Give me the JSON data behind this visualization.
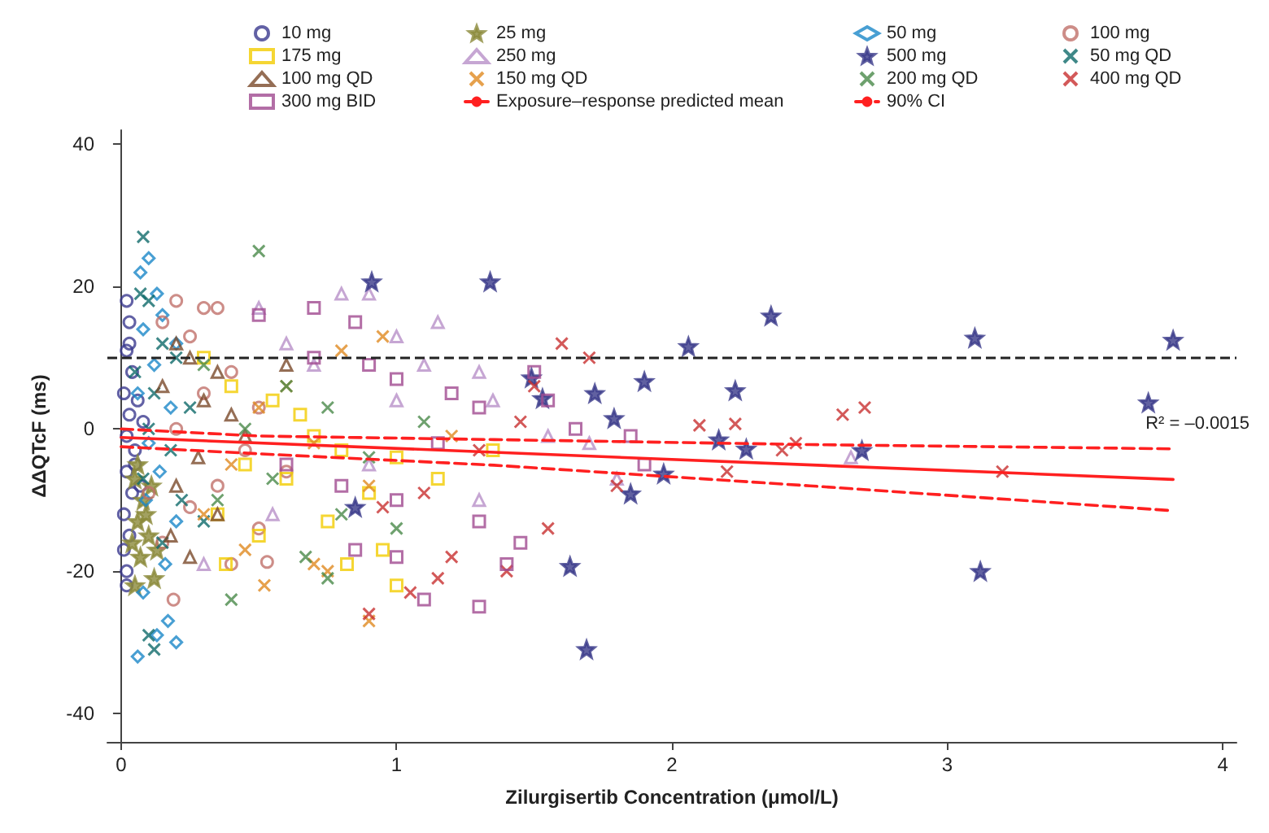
{
  "chart_data": {
    "type": "scatter",
    "xlabel": "Zilurgisertib Concentration (μmol/L)",
    "ylabel": "ΔΔQTcF (ms)",
    "xlim": [
      -0.05,
      4.05
    ],
    "xticks": [
      0,
      1,
      2,
      3,
      4
    ],
    "ylim": [
      -44,
      42
    ],
    "yticks": [
      -40,
      -20,
      0,
      20,
      40
    ],
    "grid": false,
    "legend": "top",
    "ref_lines": [
      {
        "axis": "y",
        "value": 10,
        "color": "#222222",
        "line_style": "dashed"
      }
    ],
    "annotations": [
      "R² = –0.0015"
    ],
    "series": [
      {
        "name": "10 mg",
        "type": "scatter",
        "marker": "circle",
        "color": "#3b3a8f",
        "x": [
          0.02,
          0.03,
          0.02,
          0.04,
          0.01,
          0.03,
          0.02,
          0.05,
          0.02,
          0.04,
          0.01,
          0.03,
          0.02,
          0.02,
          0.06,
          0.05,
          0.08,
          0.03,
          0.01,
          0.07
        ],
        "values": [
          18,
          15,
          11,
          8,
          5,
          2,
          -1,
          -3,
          -6,
          -9,
          -12,
          -15,
          -20,
          -22,
          4,
          -5,
          1,
          12,
          -17,
          -8
        ]
      },
      {
        "name": "25 mg",
        "type": "scatter",
        "marker": "star",
        "color": "#8b8a3a",
        "x": [
          0.05,
          0.08,
          0.06,
          0.1,
          0.07,
          0.12,
          0.05,
          0.09,
          0.11,
          0.04,
          0.13,
          0.06
        ],
        "values": [
          -7,
          -10,
          -13,
          -15,
          -18,
          -21,
          -22,
          -12,
          -8,
          -16,
          -17,
          -5
        ]
      },
      {
        "name": "50 mg",
        "type": "scatter",
        "marker": "diamond",
        "color": "#1a87c8",
        "x": [
          0.07,
          0.1,
          0.13,
          0.15,
          0.08,
          0.2,
          0.12,
          0.06,
          0.18,
          0.1,
          0.14,
          0.09,
          0.2,
          0.16,
          0.08,
          0.17,
          0.13,
          0.06,
          0.2
        ],
        "values": [
          22,
          24,
          19,
          16,
          14,
          12,
          9,
          5,
          3,
          -2,
          -6,
          -10,
          -13,
          -19,
          -23,
          -27,
          -29,
          -32,
          -30
        ]
      },
      {
        "name": "100 mg",
        "type": "scatter",
        "marker": "circle",
        "color": "#c0706a",
        "x": [
          0.2,
          0.3,
          0.35,
          0.15,
          0.25,
          0.4,
          0.3,
          0.5,
          0.2,
          0.45,
          0.6,
          0.35,
          0.25,
          0.5,
          0.15,
          0.4,
          0.53,
          0.19,
          0.1
        ],
        "values": [
          18,
          17,
          17,
          15,
          13,
          8,
          5,
          3,
          0,
          -3,
          -6,
          -8,
          -11,
          -14,
          -16,
          -19,
          -18.7,
          -24,
          -9
        ]
      },
      {
        "name": "175 mg",
        "type": "scatter",
        "marker": "square",
        "color": "#f2cc00",
        "x": [
          0.3,
          0.4,
          0.55,
          0.65,
          0.7,
          0.8,
          0.45,
          0.6,
          0.9,
          1.0,
          1.15,
          0.35,
          0.5,
          0.75,
          0.95,
          0.38,
          0.82,
          1.0,
          1.35
        ],
        "values": [
          10,
          6,
          4,
          2,
          -1,
          -3,
          -5,
          -7,
          -9,
          -4,
          -7,
          -12,
          -15,
          -13,
          -17,
          -19,
          -19,
          -22,
          -3
        ]
      },
      {
        "name": "250 mg",
        "type": "scatter",
        "marker": "triangle",
        "color": "#b890c8",
        "x": [
          0.5,
          0.8,
          0.9,
          1.0,
          1.15,
          0.6,
          0.7,
          1.1,
          1.3,
          1.35,
          1.0,
          1.55,
          0.9,
          1.3,
          1.7,
          1.8,
          2.65,
          0.3,
          0.55
        ],
        "values": [
          17,
          19,
          19,
          13,
          15,
          12,
          9,
          9,
          8,
          4,
          4,
          -1,
          -5,
          -10,
          -2,
          -7,
          -4,
          -19,
          -12
        ]
      },
      {
        "name": "500 mg",
        "type": "scatter",
        "marker": "star",
        "color": "#3a3a8a",
        "x": [
          2.36,
          3.1,
          3.82,
          3.73,
          3.12,
          1.69,
          2.06,
          2.23,
          1.9,
          1.72,
          1.53,
          1.49,
          1.79,
          2.17,
          2.27,
          2.69,
          1.97,
          1.85,
          1.63,
          0.91,
          1.34,
          0.85
        ],
        "values": [
          15.9,
          12.8,
          12.5,
          3.7,
          -20,
          -31,
          11.6,
          5.4,
          6.7,
          5,
          4.3,
          7.2,
          1.5,
          -1.5,
          -2.8,
          -3,
          -6.3,
          -9.1,
          -19.3,
          20.7,
          20.7,
          -11
        ]
      },
      {
        "name": "50 mg QD",
        "type": "scatter",
        "marker": "cross",
        "color": "#0f6a6a",
        "x": [
          0.08,
          0.07,
          0.1,
          0.15,
          0.2,
          0.05,
          0.12,
          0.25,
          0.1,
          0.18,
          0.08,
          0.22,
          0.3,
          0.15,
          0.1,
          0.12
        ],
        "values": [
          27,
          19,
          18,
          12,
          10,
          8,
          5,
          3,
          0,
          -3,
          -7,
          -10,
          -13,
          -16,
          -29,
          -31
        ]
      },
      {
        "name": "100 mg QD",
        "type": "scatter",
        "marker": "triangle",
        "color": "#7a4a2a",
        "x": [
          0.2,
          0.25,
          0.35,
          0.15,
          0.3,
          0.4,
          0.45,
          0.28,
          0.2,
          0.35,
          0.18,
          0.25,
          0.6
        ],
        "values": [
          12,
          10,
          8,
          6,
          4,
          2,
          -1,
          -4,
          -8,
          -12,
          -15,
          -18,
          9
        ]
      },
      {
        "name": "150 mg QD",
        "type": "scatter",
        "marker": "cross",
        "color": "#e08a20",
        "x": [
          0.8,
          0.95,
          0.6,
          0.5,
          0.7,
          0.4,
          0.9,
          0.3,
          0.45,
          0.52,
          0.75,
          0.9,
          0.7,
          1.2
        ],
        "values": [
          11,
          13,
          6,
          3,
          -2,
          -5,
          -8,
          -12,
          -17,
          -22,
          -20,
          -27,
          -19,
          -1
        ]
      },
      {
        "name": "200 mg QD",
        "type": "scatter",
        "marker": "cross",
        "color": "#4a8a4a",
        "x": [
          0.5,
          0.3,
          0.6,
          0.75,
          0.45,
          1.1,
          0.9,
          0.55,
          0.35,
          0.8,
          1.0,
          0.67,
          0.75,
          0.4
        ],
        "values": [
          25,
          9,
          6,
          3,
          0,
          1,
          -4,
          -7,
          -10,
          -12,
          -14,
          -18,
          -21,
          -24
        ]
      },
      {
        "name": "400 mg QD",
        "type": "scatter",
        "marker": "cross",
        "color": "#c83030",
        "x": [
          1.6,
          1.7,
          1.5,
          1.45,
          1.3,
          1.1,
          0.95,
          1.55,
          1.2,
          1.15,
          1.4,
          1.8,
          2.1,
          2.23,
          2.4,
          2.45,
          2.62,
          2.7,
          3.2,
          2.2,
          1.05,
          0.9
        ],
        "values": [
          12,
          10,
          6,
          1,
          -3,
          -9,
          -11,
          -14,
          -18,
          -21,
          -20,
          -8,
          0.5,
          0.7,
          -3,
          -2,
          2,
          3,
          -6,
          -6,
          -23,
          -26
        ]
      },
      {
        "name": "300 mg BID",
        "type": "scatter",
        "marker": "square",
        "color": "#a04a90",
        "x": [
          0.5,
          0.7,
          0.85,
          0.7,
          0.9,
          1.0,
          1.2,
          1.3,
          1.5,
          1.55,
          1.65,
          1.85,
          1.15,
          0.6,
          0.8,
          1.0,
          1.3,
          1.45,
          1.4,
          1.0,
          1.3,
          1.1,
          1.9,
          0.85
        ],
        "values": [
          16,
          17,
          15,
          10,
          9,
          7,
          5,
          3,
          8,
          4,
          0,
          -1,
          -2,
          -5,
          -8,
          -10,
          -13,
          -16,
          -19,
          -18,
          -25,
          -24,
          -5,
          -17
        ]
      },
      {
        "name": "Exposure–response predicted mean",
        "type": "line",
        "marker": "none",
        "line_style": "solid",
        "color": "#ff2020",
        "x": [
          0,
          3.82
        ],
        "values": [
          -1.2,
          -7.1
        ]
      },
      {
        "name": "90% CI",
        "type": "line",
        "marker": "none",
        "line_style": "dashed",
        "color": "#ff2020",
        "x": [
          0,
          0.5,
          1.354,
          2.5,
          3.82
        ],
        "values": [
          0,
          -1,
          -1.5,
          -2.2,
          -2.8
        ]
      },
      {
        "type": "line",
        "marker": "none",
        "line_style": "dashed",
        "color": "#ff2020",
        "x": [
          0,
          0.5,
          1.354,
          2.5,
          3.82
        ],
        "values": [
          -2.5,
          -3.5,
          -5.1,
          -8,
          -11.5
        ]
      }
    ]
  }
}
